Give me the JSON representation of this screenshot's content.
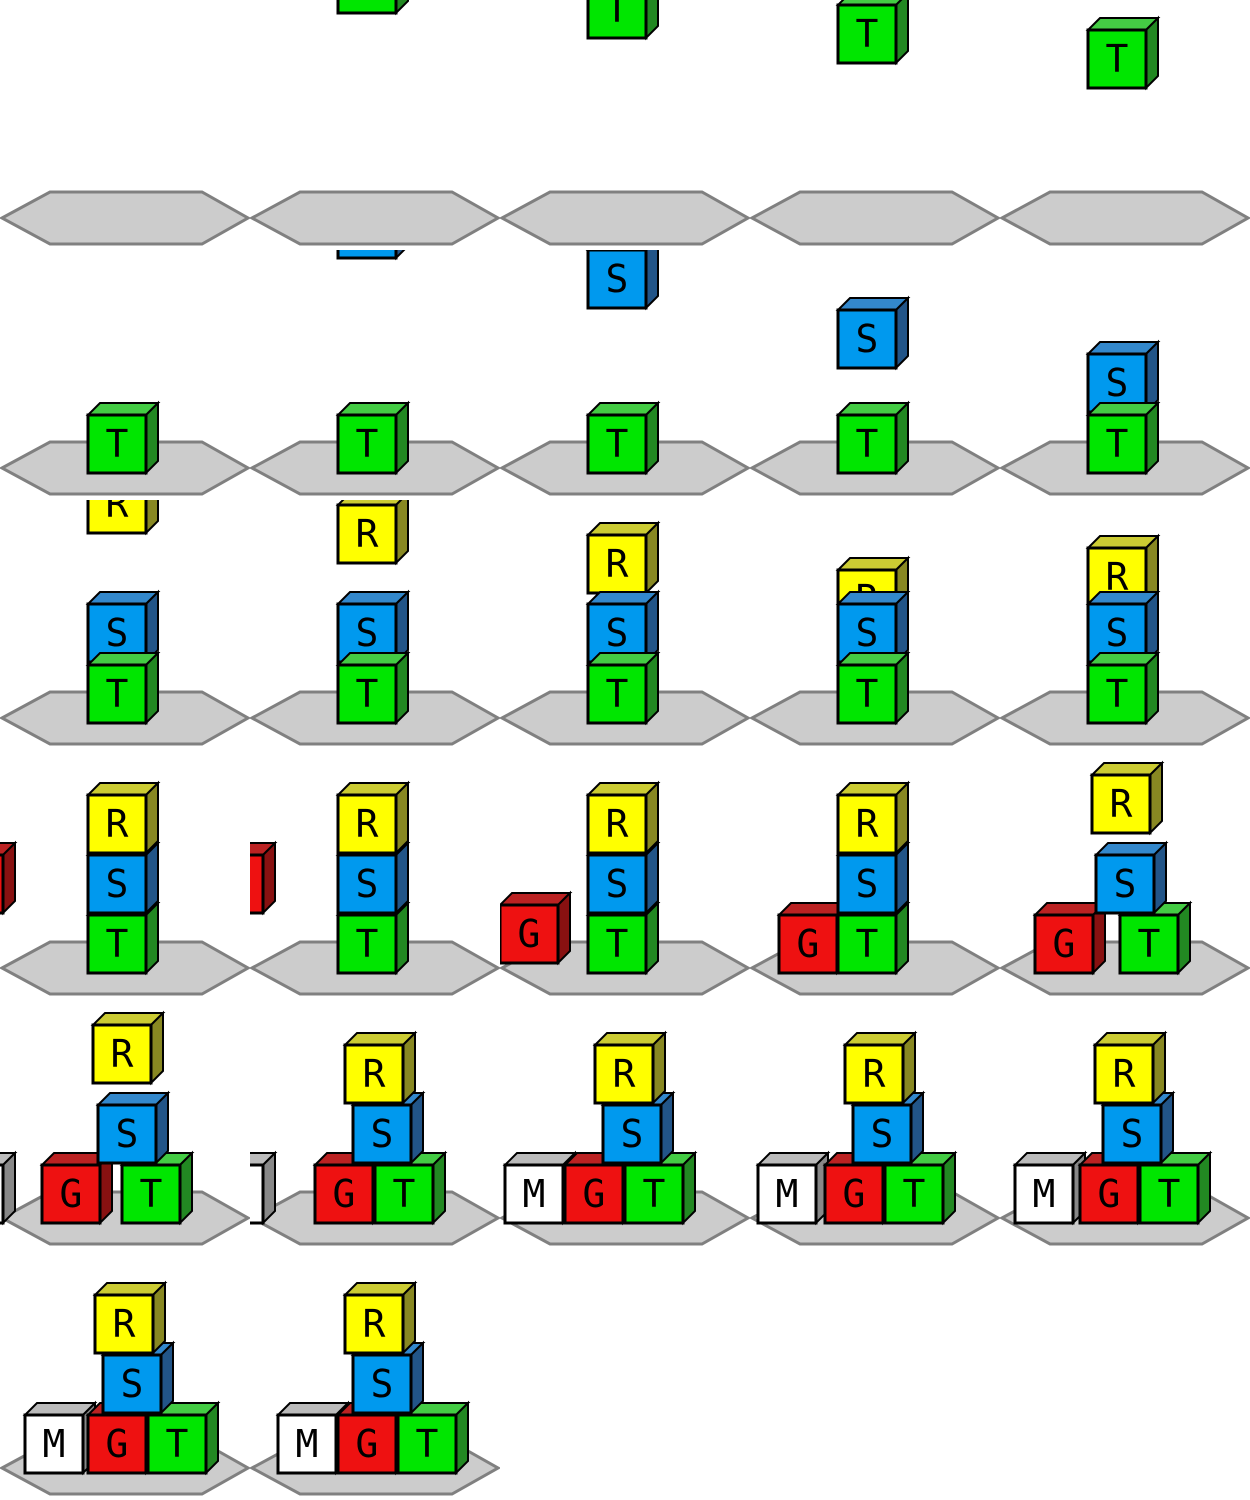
{
  "colors": {
    "background": "#ffffff",
    "platform_fill": "#cccccc",
    "platform_stroke": "#808080",
    "outline": "#000000",
    "T": {
      "front": "#00e600",
      "top": "#44cc44",
      "side": "#228822"
    },
    "S": {
      "front": "#0099ee",
      "top": "#3388cc",
      "side": "#225588"
    },
    "R": {
      "front": "#ffff00",
      "top": "#cccc33",
      "side": "#888822"
    },
    "G": {
      "front": "#ee1111",
      "top": "#bb2222",
      "side": "#881111"
    },
    "M": {
      "front": "#ffffff",
      "top": "#bbbbbb",
      "side": "#888888"
    }
  },
  "blocks": {
    "T": {
      "label": "T",
      "icon": "block-t-icon"
    },
    "S": {
      "label": "S",
      "icon": "block-s-icon"
    },
    "R": {
      "label": "R",
      "icon": "block-r-icon"
    },
    "G": {
      "label": "G",
      "icon": "block-g-icon"
    },
    "M": {
      "label": "M",
      "icon": "block-m-icon"
    }
  },
  "frame_count": 27,
  "grid_columns": 5,
  "frame_sequence": [
    {
      "phase": "T falling onto platform"
    },
    {
      "phase": "T falling onto platform"
    },
    {
      "phase": "T falling onto platform"
    },
    {
      "phase": "T falling onto platform"
    },
    {
      "phase": "T falling onto platform"
    },
    {
      "phase": "S falling onto T"
    },
    {
      "phase": "S falling onto T"
    },
    {
      "phase": "S falling onto T"
    },
    {
      "phase": "S falling onto T"
    },
    {
      "phase": "S falling onto T"
    },
    {
      "phase": "R falling onto S"
    },
    {
      "phase": "R falling onto S"
    },
    {
      "phase": "R falling onto S"
    },
    {
      "phase": "R falling onto S"
    },
    {
      "phase": "R stacked on S"
    },
    {
      "phase": "G sliding in from left"
    },
    {
      "phase": "G sliding in from left"
    },
    {
      "phase": "G sliding in from left"
    },
    {
      "phase": "G placed, T pushed right"
    },
    {
      "phase": "G placed, T pushed right"
    },
    {
      "phase": "M sliding in from left"
    },
    {
      "phase": "M sliding in from left"
    },
    {
      "phase": "M sliding in from left"
    },
    {
      "phase": "M sliding in from left"
    },
    {
      "phase": "M placed"
    },
    {
      "phase": "M placed"
    },
    {
      "phase": "final stack M G T S R"
    }
  ]
}
